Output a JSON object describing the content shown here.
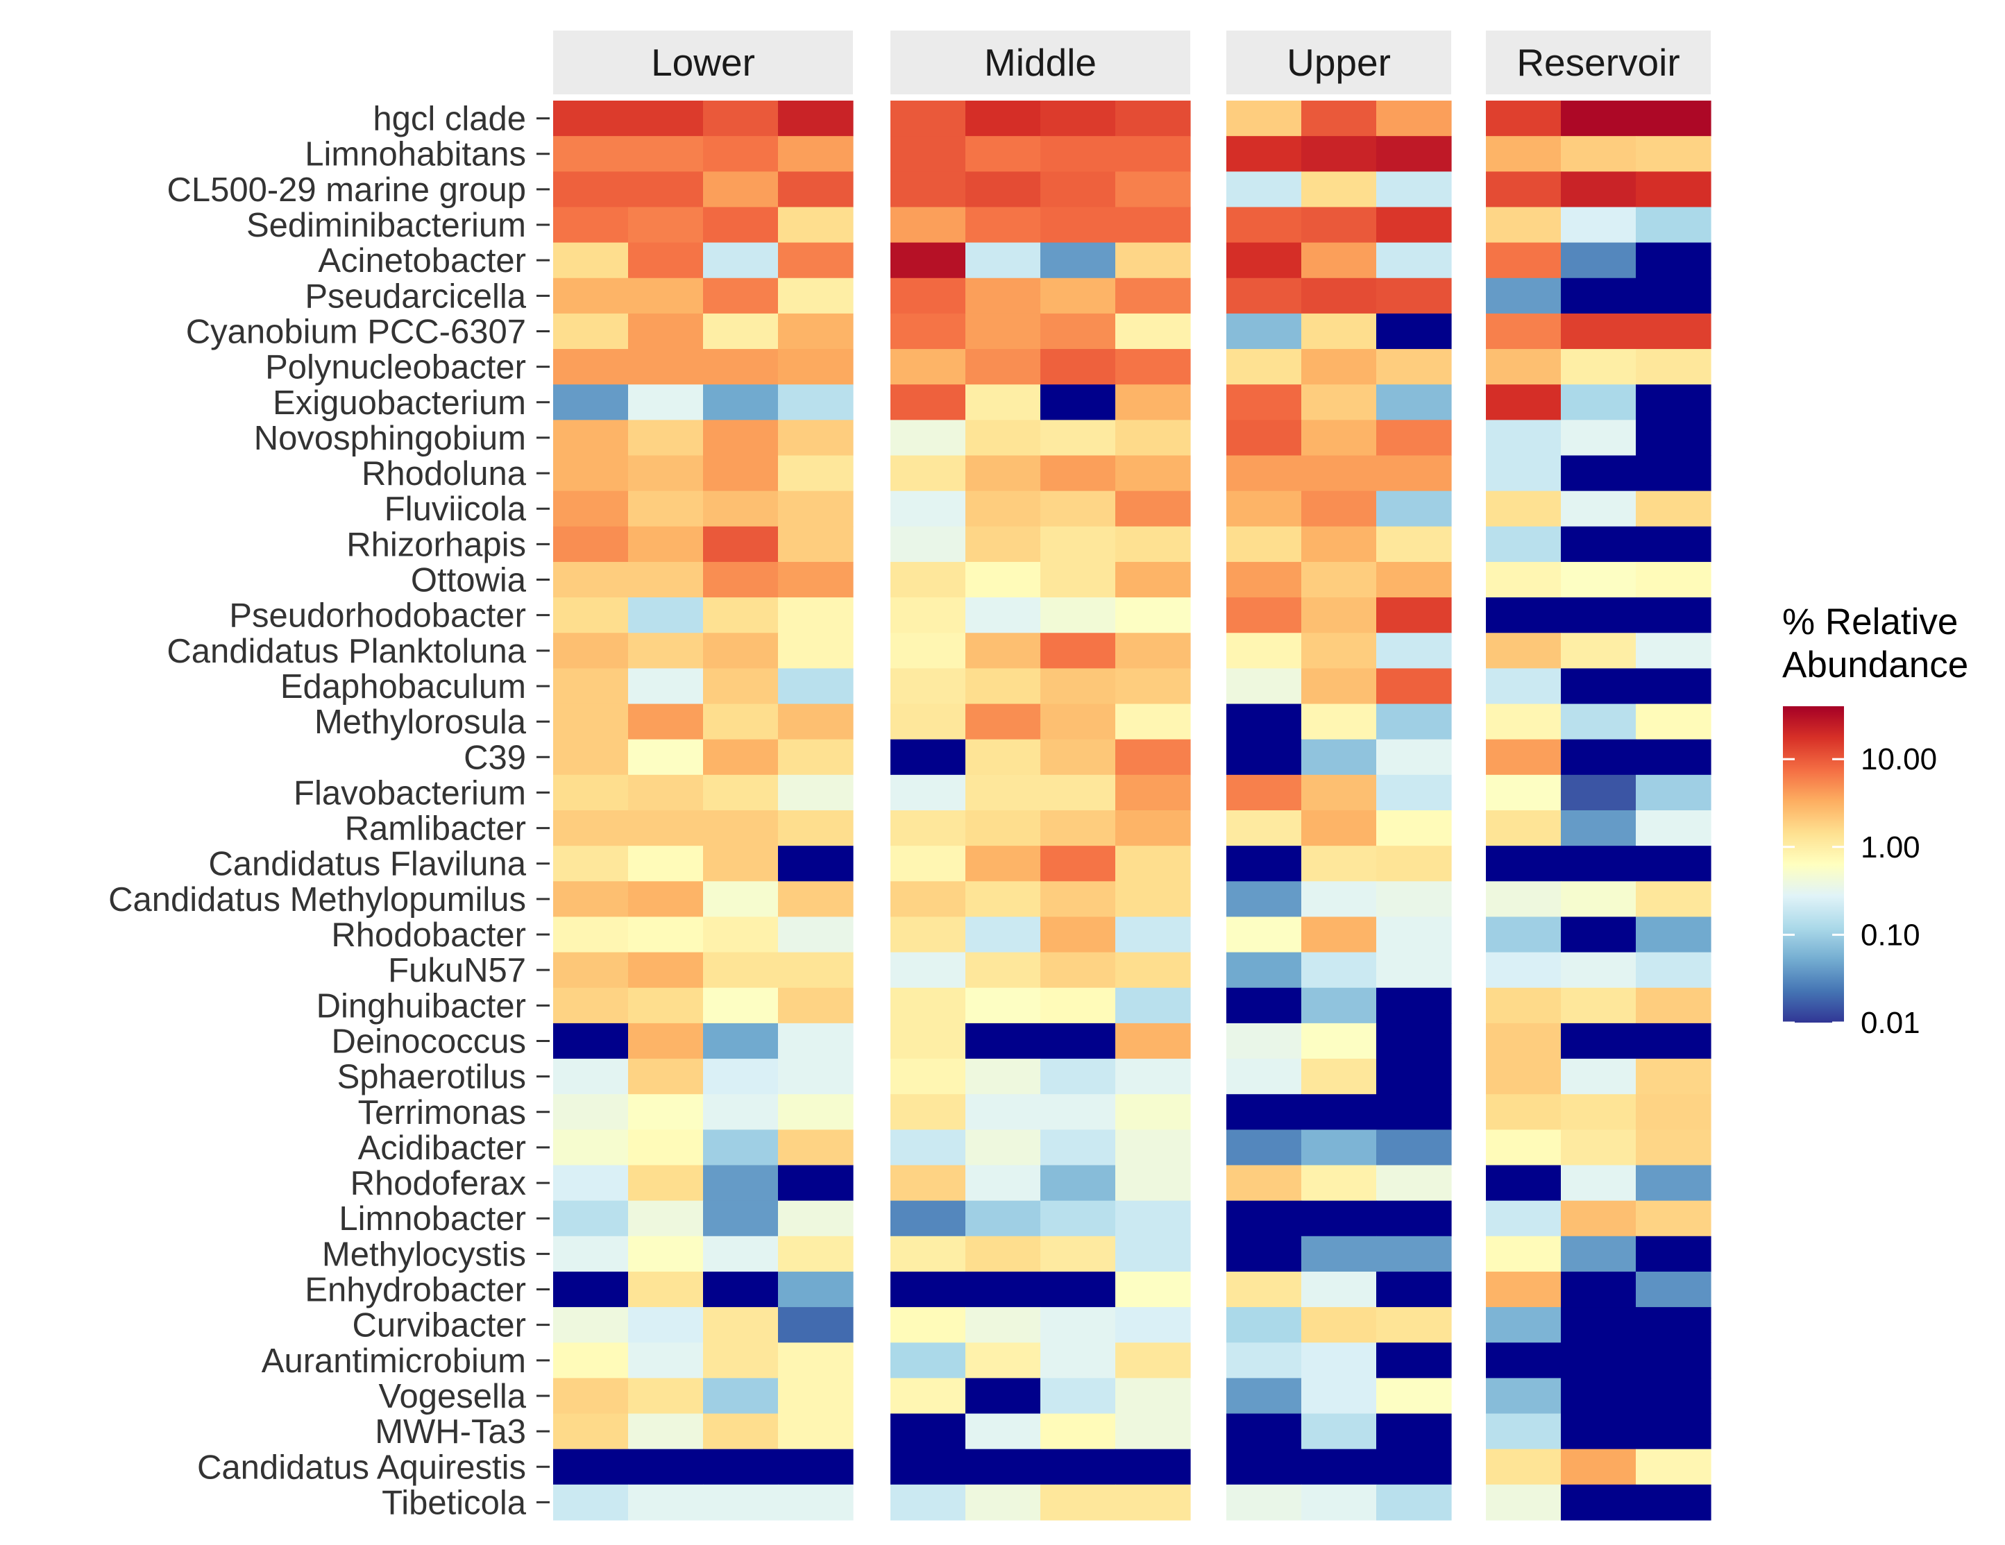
{
  "chart_data": {
    "type": "heatmap",
    "facets": [
      "Lower",
      "Middle",
      "Upper",
      "Reservoir"
    ],
    "facet_columns": [
      4,
      4,
      3,
      3
    ],
    "rows": [
      "hgcl clade",
      "Limnohabitans",
      "CL500-29 marine group",
      "Sediminibacterium",
      "Acinetobacter",
      "Pseudarcicella",
      "Cyanobium PCC-6307",
      "Polynucleobacter",
      "Exiguobacterium",
      "Novosphingobium",
      "Rhodoluna",
      "Fluviicola",
      "Rhizorhapis",
      "Ottowia",
      "Pseudorhodobacter",
      "Candidatus Planktoluna",
      "Edaphobaculum",
      "Methylorosula",
      "C39",
      "Flavobacterium",
      "Ramlibacter",
      "Candidatus Flaviluna",
      "Candidatus Methylopumilus",
      "Rhodobacter",
      "FukuN57",
      "Dinghuibacter",
      "Deinococcus",
      "Sphaerotilus",
      "Terrimonas",
      "Acidibacter",
      "Rhodoferax",
      "Limnobacter",
      "Methylocystis",
      "Enhydrobacter",
      "Curvibacter",
      "Aurantimicrobium",
      "Vogesella",
      "MWH-Ta3",
      "Candidatus Aquirestis",
      "Tibeticola"
    ],
    "scale": "log10",
    "values": [
      [
        [
          15,
          15,
          10,
          22
        ],
        [
          10,
          18,
          15,
          12
        ],
        [
          2,
          10,
          4
        ],
        [
          14,
          35,
          35
        ]
      ],
      [
        [
          6,
          6,
          7,
          4
        ],
        [
          10,
          7,
          8,
          8
        ],
        [
          18,
          22,
          26
        ],
        [
          3,
          2,
          1.8
        ]
      ],
      [
        [
          9,
          9,
          4,
          10
        ],
        [
          10,
          12,
          9,
          6
        ],
        [
          0.2,
          1.5,
          0.2
        ],
        [
          12,
          22,
          18
        ]
      ],
      [
        [
          7,
          6,
          8,
          1.5
        ],
        [
          4,
          7,
          8,
          8
        ],
        [
          9,
          10,
          16
        ],
        [
          1.7,
          0.25,
          0.12
        ]
      ],
      [
        [
          1.5,
          7,
          0.2,
          6
        ],
        [
          30,
          0.2,
          0.04,
          1.7
        ],
        [
          18,
          4,
          0.2
        ],
        [
          7,
          0.03,
          0.005
        ]
      ],
      [
        [
          3,
          3,
          6,
          1
        ],
        [
          8,
          4,
          3,
          6
        ],
        [
          10,
          12,
          11
        ],
        [
          0.04,
          0.005,
          0.005
        ]
      ],
      [
        [
          1.5,
          4,
          1,
          3
        ],
        [
          7,
          4,
          5,
          0.9
        ],
        [
          0.07,
          1.5,
          0.005
        ],
        [
          6,
          14,
          14
        ]
      ],
      [
        [
          4,
          4,
          4,
          3.5
        ],
        [
          3,
          5,
          9,
          7
        ],
        [
          1.4,
          3,
          2
        ],
        [
          2.5,
          1,
          1.2
        ]
      ],
      [
        [
          0.04,
          0.3,
          0.05,
          0.15
        ],
        [
          9,
          1,
          0.008,
          3
        ],
        [
          8,
          2,
          0.07
        ],
        [
          18,
          0.12,
          0.005
        ]
      ],
      [
        [
          3,
          1.8,
          4,
          2
        ],
        [
          0.4,
          1.3,
          1.1,
          1.6
        ],
        [
          9,
          3,
          6
        ],
        [
          0.2,
          0.3,
          0.005
        ]
      ],
      [
        [
          3,
          2.5,
          4,
          1.2
        ],
        [
          1.2,
          2.5,
          4,
          3
        ],
        [
          4,
          4,
          4
        ],
        [
          0.2,
          0.005,
          0.005
        ]
      ],
      [
        [
          4,
          2,
          2.5,
          2
        ],
        [
          0.3,
          2,
          1.7,
          5
        ],
        [
          3,
          5,
          0.1
        ],
        [
          1.4,
          0.3,
          1.6
        ]
      ],
      [
        [
          5,
          3,
          10,
          2
        ],
        [
          0.35,
          1.7,
          1.2,
          1.4
        ],
        [
          1.5,
          3,
          1.2
        ],
        [
          0.15,
          0.005,
          0.008
        ]
      ],
      [
        [
          2,
          2,
          5,
          4
        ],
        [
          1.2,
          0.7,
          1.2,
          3
        ],
        [
          4,
          2,
          3
        ],
        [
          0.8,
          0.6,
          0.7
        ]
      ],
      [
        [
          1.5,
          0.15,
          1.4,
          0.8
        ],
        [
          0.9,
          0.3,
          0.45,
          0.6
        ],
        [
          6,
          2.5,
          14
        ],
        [
          0.005,
          0.005,
          0.005
        ]
      ],
      [
        [
          2.5,
          1.8,
          2.5,
          0.8
        ],
        [
          0.8,
          2.5,
          7,
          2.5
        ],
        [
          0.8,
          2,
          0.2
        ],
        [
          2.2,
          1,
          0.3
        ]
      ],
      [
        [
          2,
          0.3,
          2,
          0.15
        ],
        [
          1.1,
          1.5,
          2.2,
          2
        ],
        [
          0.4,
          2.5,
          9
        ],
        [
          0.2,
          0.005,
          0.005
        ]
      ],
      [
        [
          2,
          4,
          1.5,
          2.5
        ],
        [
          1.2,
          5,
          2.5,
          0.8
        ],
        [
          0.005,
          0.8,
          0.1
        ],
        [
          0.8,
          0.15,
          0.7
        ]
      ],
      [
        [
          2,
          0.6,
          3,
          1.4
        ],
        [
          0.005,
          1.3,
          2.2,
          6
        ],
        [
          0.005,
          0.08,
          0.3
        ],
        [
          4,
          0.005,
          0.005
        ]
      ],
      [
        [
          1.5,
          1.7,
          1.3,
          0.4
        ],
        [
          0.3,
          1.2,
          1.2,
          4
        ],
        [
          6,
          2.5,
          0.2
        ],
        [
          0.6,
          0.015,
          0.1
        ]
      ],
      [
        [
          2,
          2,
          2,
          1.5
        ],
        [
          1.2,
          1.5,
          2,
          3
        ],
        [
          1.1,
          3,
          0.7
        ],
        [
          1.3,
          0.04,
          0.3
        ]
      ],
      [
        [
          1.2,
          0.7,
          2,
          0.005
        ],
        [
          0.8,
          3,
          7,
          1.5
        ],
        [
          0.005,
          1.2,
          1.3
        ],
        [
          0.005,
          0.005,
          0.005
        ]
      ],
      [
        [
          2.5,
          3,
          0.5,
          2
        ],
        [
          1.8,
          1.3,
          2,
          1.5
        ],
        [
          0.04,
          0.3,
          0.35
        ],
        [
          0.4,
          0.5,
          1.2
        ]
      ],
      [
        [
          0.8,
          0.7,
          0.9,
          0.35
        ],
        [
          1.2,
          0.2,
          3,
          0.2
        ],
        [
          0.6,
          3,
          0.3
        ],
        [
          0.1,
          0.005,
          0.05
        ]
      ],
      [
        [
          2.2,
          3,
          1.3,
          1.3
        ],
        [
          0.3,
          1.2,
          1.8,
          1.5
        ],
        [
          0.05,
          0.2,
          0.3
        ],
        [
          0.25,
          0.3,
          0.2
        ]
      ],
      [
        [
          1.8,
          1.5,
          0.6,
          1.8
        ],
        [
          1,
          0.6,
          0.7,
          0.15
        ],
        [
          0.005,
          0.08,
          0.005
        ],
        [
          1.6,
          1.2,
          2
        ]
      ],
      [
        [
          0.005,
          3,
          0.05,
          0.3
        ],
        [
          1,
          0.005,
          0.005,
          3
        ],
        [
          0.35,
          0.6,
          0.005
        ],
        [
          2,
          0.005,
          0.005
        ]
      ],
      [
        [
          0.3,
          1.8,
          0.25,
          0.3
        ],
        [
          0.8,
          0.4,
          0.2,
          0.3
        ],
        [
          0.3,
          1.2,
          0.005
        ],
        [
          2,
          0.3,
          1.7
        ]
      ],
      [
        [
          0.4,
          0.6,
          0.3,
          0.5
        ],
        [
          1.2,
          0.3,
          0.3,
          0.5
        ],
        [
          0.005,
          0.005,
          0.005
        ],
        [
          1.5,
          1.3,
          1.8
        ]
      ],
      [
        [
          0.5,
          0.7,
          0.1,
          1.8
        ],
        [
          0.2,
          0.4,
          0.2,
          0.4
        ],
        [
          0.03,
          0.06,
          0.03
        ],
        [
          0.7,
          1.1,
          1.7
        ]
      ],
      [
        [
          0.25,
          1.5,
          0.04,
          0.005
        ],
        [
          1.8,
          0.3,
          0.07,
          0.4
        ],
        [
          2,
          0.9,
          0.4
        ],
        [
          0.005,
          0.3,
          0.04
        ]
      ],
      [
        [
          0.15,
          0.4,
          0.04,
          0.4
        ],
        [
          0.03,
          0.1,
          0.15,
          0.2
        ],
        [
          0.005,
          0.005,
          0.005
        ],
        [
          0.2,
          2.5,
          1.8
        ]
      ],
      [
        [
          0.3,
          0.6,
          0.3,
          1
        ],
        [
          1,
          1.5,
          1.1,
          0.2
        ],
        [
          0.005,
          0.04,
          0.04
        ],
        [
          0.7,
          0.04,
          0.005
        ]
      ],
      [
        [
          0.005,
          1.3,
          0.005,
          0.05
        ],
        [
          0.005,
          0.005,
          0.005,
          0.6
        ],
        [
          1.2,
          0.3,
          0.005
        ],
        [
          3,
          0.005,
          0.035
        ]
      ],
      [
        [
          0.4,
          0.25,
          1.2,
          0.02
        ],
        [
          0.7,
          0.4,
          0.3,
          0.25
        ],
        [
          0.12,
          1.5,
          1.3
        ],
        [
          0.06,
          0.005,
          0.005
        ]
      ],
      [
        [
          0.7,
          0.3,
          1.2,
          0.8
        ],
        [
          0.12,
          0.9,
          0.3,
          1.2
        ],
        [
          0.2,
          0.25,
          0.005
        ],
        [
          0.005,
          0.005,
          0.005
        ]
      ],
      [
        [
          1.8,
          1.3,
          0.1,
          0.8
        ],
        [
          0.8,
          0.005,
          0.2,
          0.4
        ],
        [
          0.04,
          0.25,
          0.6
        ],
        [
          0.07,
          0.005,
          0.005
        ]
      ],
      [
        [
          1.6,
          0.4,
          1.5,
          0.8
        ],
        [
          0.005,
          0.3,
          0.7,
          0.4
        ],
        [
          0.005,
          0.15,
          0.005
        ],
        [
          0.15,
          0.005,
          0.005
        ]
      ],
      [
        [
          0.005,
          0.005,
          0.005,
          0.005
        ],
        [
          0.005,
          0.005,
          0.005,
          0.005
        ],
        [
          0.005,
          0.005,
          0.005
        ],
        [
          1.3,
          3.5,
          0.8
        ]
      ],
      [
        [
          0.2,
          0.3,
          0.3,
          0.3
        ],
        [
          0.2,
          0.4,
          1.2,
          1.2
        ],
        [
          0.35,
          0.3,
          0.15
        ],
        [
          0.4,
          0.005,
          0.005
        ]
      ]
    ],
    "legend": {
      "title_line1": "% Relative",
      "title_line2": "Abundance",
      "ticks": [
        "10.00",
        "1.00",
        "0.10",
        "0.01"
      ],
      "tick_values": [
        10,
        1,
        0.1,
        0.01
      ],
      "placement": "right"
    },
    "color_scale": {
      "min_color": "#313695",
      "max_color": "#a50026",
      "below_min_color": "#00008b",
      "domain": [
        0.01,
        40
      ],
      "palette": "RdYlBu (reversed)"
    }
  }
}
